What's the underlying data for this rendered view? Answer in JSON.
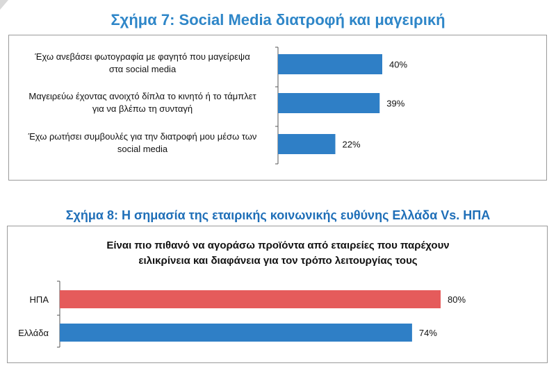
{
  "chart_data": [
    {
      "type": "bar",
      "orientation": "horizontal",
      "title": "Σχήμα 7: Social Media διατροφή και μαγειρική",
      "categories": [
        [
          "Έχω ανεβάσει φωτογραφία με φαγητό που μαγείρεψα",
          "στα social media"
        ],
        [
          "Μαγειρεύω έχοντας ανοιχτό δίπλα το κινητό ή το τάμπλετ",
          "για να βλέπω τη συνταγή"
        ],
        [
          "Έχω ρωτήσει συμβουλές για την διατροφή μου μέσω των",
          "social media"
        ]
      ],
      "values": [
        40,
        39,
        22
      ],
      "value_labels": [
        "40%",
        "39%",
        "22%"
      ],
      "bar_color": "#2f7fc6",
      "xlim": [
        0,
        100
      ],
      "grid": false
    },
    {
      "type": "bar",
      "orientation": "horizontal",
      "title": "Σχήμα 8: Η σημασία της εταιρικής κοινωνικής ευθύνης Ελλάδα Vs. ΗΠΑ",
      "subtitle": [
        "Είναι πιο πιθανό να αγοράσω προϊόντα από εταιρείες που παρέχουν",
        "ειλικρίνεια και διαφάνεια για τον τρόπο λειτουργίας τους"
      ],
      "categories": [
        "ΗΠΑ",
        "Ελλάδα"
      ],
      "values": [
        80,
        74
      ],
      "value_labels": [
        "80%",
        "74%"
      ],
      "bar_colors": [
        "#e55b5b",
        "#2f7fc6"
      ],
      "xlim": [
        0,
        100
      ],
      "grid": false
    }
  ],
  "colors": {
    "title1": "#2e86c8",
    "title2": "#1f6fb8",
    "frame": "#9a9a9a"
  }
}
